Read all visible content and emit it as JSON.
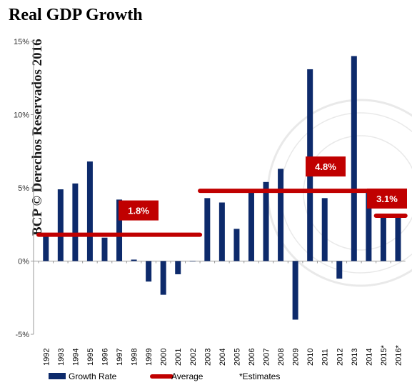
{
  "chart_data": {
    "type": "bar",
    "title": "Real GDP Growth",
    "watermark": "BCP © Derechos Reservados 2016",
    "categories": [
      "1992",
      "1993",
      "1994",
      "1995",
      "1996",
      "1997",
      "1998",
      "1999",
      "2000",
      "2001",
      "2002",
      "2003",
      "2004",
      "2005",
      "2006",
      "2007",
      "2008",
      "2009",
      "2010",
      "2011",
      "2012",
      "2013",
      "2014",
      "2015*",
      "2016*"
    ],
    "series": [
      {
        "name": "Growth Rate",
        "color": "#0d2a6b",
        "values": [
          1.8,
          4.9,
          5.3,
          6.8,
          1.6,
          4.2,
          0.1,
          -1.4,
          -2.3,
          -0.9,
          0.0,
          4.3,
          4.0,
          2.2,
          4.8,
          5.4,
          6.3,
          -4.0,
          13.1,
          4.3,
          -1.2,
          14.0,
          4.8,
          3.1,
          3.0
        ]
      }
    ],
    "averages": [
      {
        "name": "Average",
        "label": "1.8%",
        "value": 1.8,
        "from": "1992",
        "to": "2002"
      },
      {
        "name": "Average",
        "label": "4.8%",
        "value": 4.8,
        "from": "2003",
        "to": "2014"
      },
      {
        "name": "Average",
        "label": "3.1%",
        "value": 3.1,
        "from": "2015*",
        "to": "2016*"
      }
    ],
    "average_color": "#c00000",
    "ylim": [
      -5,
      15
    ],
    "yticks": [
      -5,
      0,
      5,
      10,
      15
    ],
    "ytick_labels": [
      "-5%",
      "0%",
      "5%",
      "10%",
      "15%"
    ],
    "legend": {
      "placement": "bottom",
      "items": [
        "Growth Rate",
        "Average",
        "*Estimates"
      ]
    },
    "grid": false
  }
}
